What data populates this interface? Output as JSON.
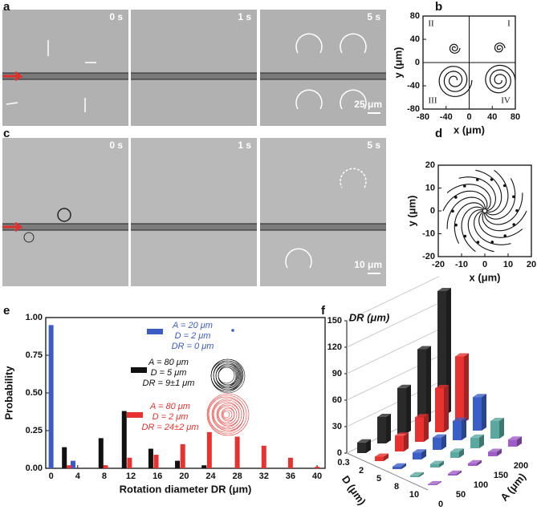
{
  "figure": {
    "panels": [
      "a",
      "b",
      "c",
      "d",
      "e",
      "f"
    ],
    "a_labels": [
      "0 s",
      "1 s",
      "5 s"
    ],
    "a_scale": "25 μm",
    "c_labels": [
      "0 s",
      "1 s",
      "5 s"
    ],
    "c_scale": "10 μm"
  },
  "chart_data": [
    {
      "type": "trajectory",
      "xlabel": "x (μm)",
      "ylabel": "y (μm)",
      "xlim": [
        -80,
        80
      ],
      "ylim": [
        -80,
        80
      ],
      "xticks": [
        -80,
        -40,
        0,
        40,
        80
      ],
      "yticks": [
        -80,
        -40,
        0,
        40,
        80
      ],
      "quadrants": [
        "I",
        "II",
        "III",
        "IV"
      ]
    },
    {
      "type": "streamline",
      "xlabel": "x (μm)",
      "ylabel": "y (μm)",
      "xlim": [
        -20,
        20
      ],
      "ylim": [
        -20,
        20
      ],
      "xticks": [
        -20,
        -10,
        0,
        10,
        20
      ],
      "yticks": [
        -20,
        -10,
        0,
        10,
        20
      ]
    },
    {
      "type": "bar",
      "xlabel": "Rotation diameter DR (μm)",
      "ylabel": "Probability",
      "xlim": [
        -0.8,
        41.2
      ],
      "ylim": [
        0,
        1
      ],
      "xticks": [
        0,
        4,
        8,
        12,
        16,
        20,
        24,
        28,
        32,
        36,
        40
      ],
      "yticks": [
        {
          "value": 0,
          "label": "0.00"
        },
        {
          "value": 0.25,
          "label": "0.25"
        },
        {
          "value": 0.5,
          "label": "0.50"
        },
        {
          "value": 0.75,
          "label": "0.75"
        },
        {
          "value": 1,
          "label": "1.00"
        }
      ],
      "series": [
        {
          "name": "A = 20 μm",
          "details": [
            "D = 2 μm",
            "DR = 0 μm"
          ],
          "color": "#3b5cc4",
          "x": [
            0,
            3.3
          ],
          "values": [
            0.95,
            0.05
          ]
        },
        {
          "name": "A = 80 μm",
          "details": [
            "D = 5 μm",
            "DR = 9±1 μm"
          ],
          "color": "#111111",
          "x": [
            2,
            7.5,
            11,
            15,
            19,
            23
          ],
          "values": [
            0.14,
            0.2,
            0.38,
            0.13,
            0.05,
            0.02
          ]
        },
        {
          "name": "A = 80 μm",
          "details": [
            "D = 2 μm",
            "DR = 24±2 μm"
          ],
          "color": "#e8322f",
          "x": [
            2.7,
            8.2,
            11.8,
            15.8,
            19.8,
            23.8,
            28,
            32,
            36,
            40
          ],
          "values": [
            0.02,
            0.02,
            0.07,
            0.09,
            0.16,
            0.24,
            0.21,
            0.15,
            0.07,
            0.01
          ]
        }
      ]
    },
    {
      "type": "bar3d",
      "zlabel": "DR (μm)",
      "xlabel": "A (μm)",
      "ylabel": "D (μm)",
      "A": [
        0,
        50,
        100,
        150,
        200
      ],
      "D": [
        0.3,
        2,
        5,
        8,
        10
      ],
      "zlim": [
        0,
        150
      ],
      "zticks": [
        0,
        30,
        60,
        90,
        120,
        150
      ],
      "series": [
        {
          "color": "#2a2a2a",
          "values": [
            12,
            30,
            52,
            85,
            140
          ]
        },
        {
          "color": "#e8322f",
          "values": [
            5,
            18,
            28,
            50,
            75
          ]
        },
        {
          "color": "#3b5fc8",
          "values": [
            3,
            8,
            14,
            22,
            38
          ]
        },
        {
          "color": "#5aa8a0",
          "values": [
            2,
            4,
            7,
            12,
            20
          ]
        },
        {
          "color": "#a05cc8",
          "values": [
            1,
            2,
            3,
            5,
            8
          ]
        }
      ]
    }
  ]
}
